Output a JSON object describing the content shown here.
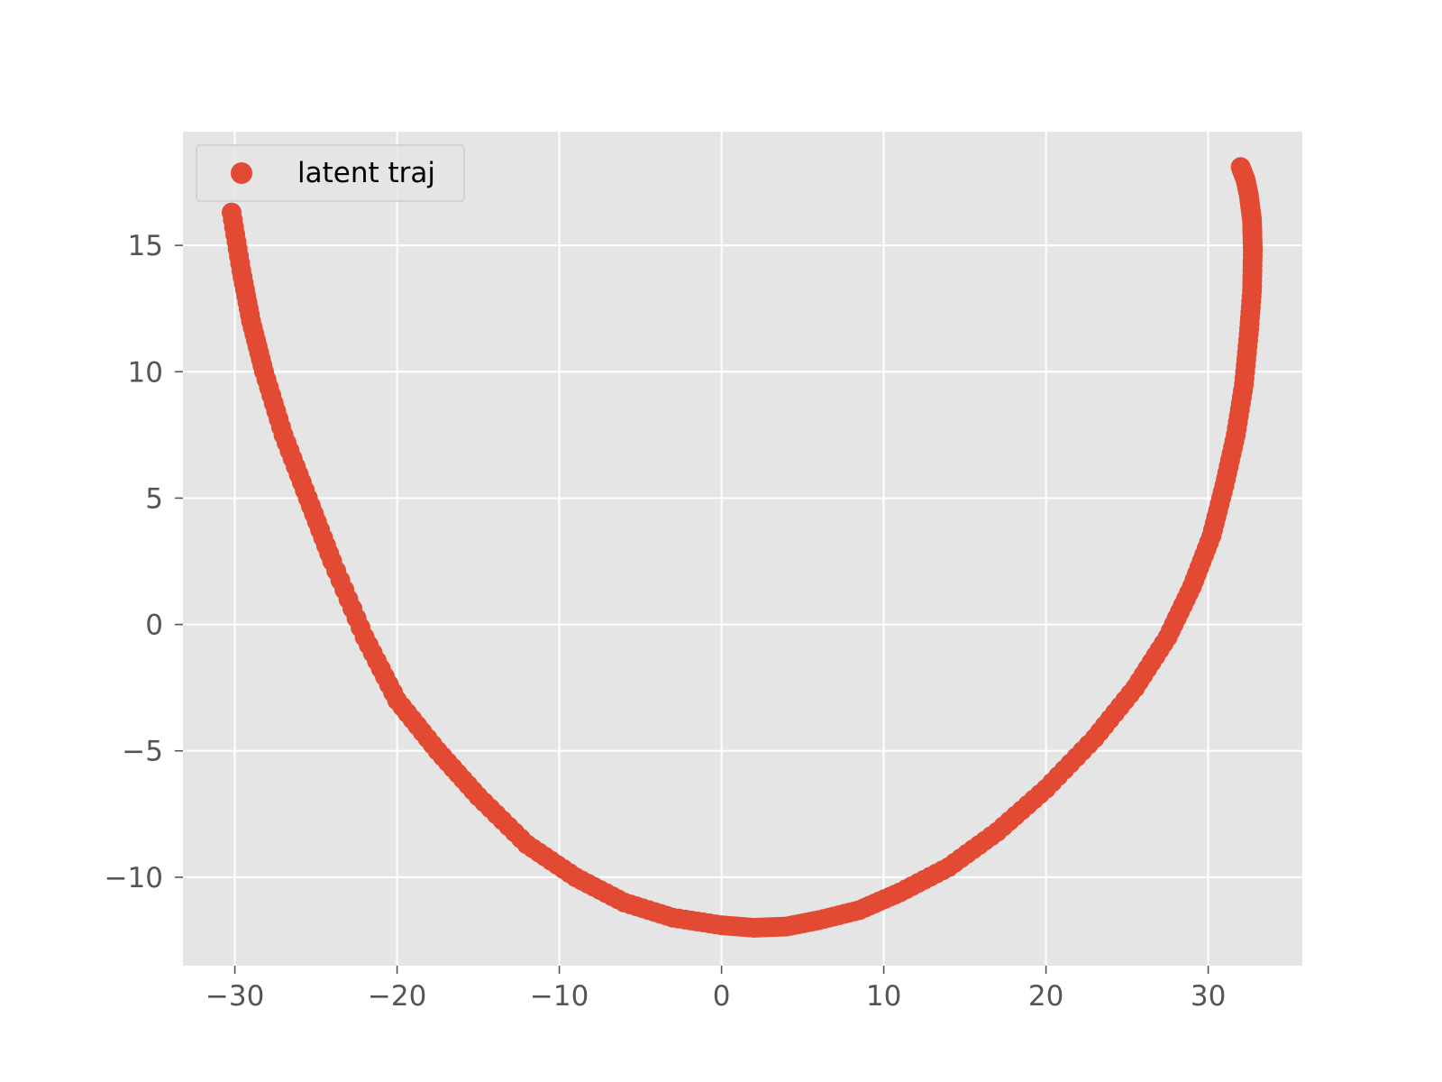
{
  "chart_data": {
    "type": "scatter",
    "title": "",
    "xlabel": "",
    "ylabel": "",
    "xlim": [
      -33.2,
      35.8
    ],
    "ylim": [
      -13.5,
      19.5
    ],
    "x_ticks": [
      -30,
      -20,
      -10,
      0,
      10,
      20,
      30
    ],
    "x_tick_labels": [
      "−30",
      "−20",
      "−10",
      "0",
      "10",
      "20",
      "30"
    ],
    "y_ticks": [
      -10,
      -5,
      0,
      5,
      10,
      15
    ],
    "y_tick_labels": [
      "−10",
      "−5",
      "0",
      "5",
      "10",
      "15"
    ],
    "grid": true,
    "legend": {
      "placement": "upper-left",
      "entries": [
        "latent traj"
      ]
    },
    "series": [
      {
        "name": "latent traj",
        "color": "#E24A33",
        "x": [
          -30.2,
          -29.6,
          -29.0,
          -28.2,
          -27.0,
          -25.5,
          -24.0,
          -22.0,
          -20.0,
          -17.5,
          -15.0,
          -12.0,
          -9.0,
          -6.0,
          -3.0,
          0.0,
          2.0,
          4.0,
          6.0,
          8.5,
          11.0,
          14.0,
          17.0,
          20.0,
          23.0,
          25.5,
          27.5,
          29.0,
          30.2,
          31.0,
          31.7,
          32.2,
          32.5,
          32.7,
          32.75,
          32.7,
          32.5,
          32.3,
          32.0
        ],
        "y": [
          16.3,
          14.0,
          12.0,
          10.0,
          7.5,
          5.0,
          2.5,
          -0.5,
          -3.0,
          -5.0,
          -6.8,
          -8.7,
          -10.0,
          -11.0,
          -11.6,
          -11.9,
          -12.0,
          -11.95,
          -11.7,
          -11.3,
          -10.6,
          -9.6,
          -8.2,
          -6.5,
          -4.5,
          -2.5,
          -0.5,
          1.5,
          3.5,
          5.5,
          7.5,
          9.5,
          11.5,
          13.2,
          14.8,
          16.0,
          17.0,
          17.6,
          18.1
        ]
      }
    ]
  }
}
